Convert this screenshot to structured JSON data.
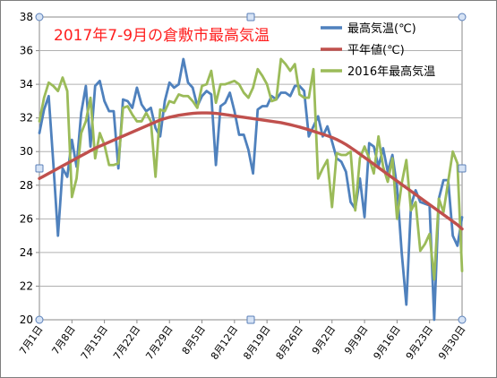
{
  "chart_data": {
    "type": "line",
    "title": "2017年7-9月の倉敷市最高気温",
    "xlabel": "",
    "ylabel": "",
    "ylim": [
      20,
      38
    ],
    "yticks": [
      20,
      22,
      24,
      26,
      28,
      30,
      32,
      34,
      36,
      38
    ],
    "xticks": [
      "7月1日",
      "7月8日",
      "7月15日",
      "7月22日",
      "7月29日",
      "8月5日",
      "8月12日",
      "8月19日",
      "8月26日",
      "9月2日",
      "9月9日",
      "9月16日",
      "9月23日",
      "9月30日"
    ],
    "grid": "horizontal",
    "legend": "top-right",
    "days": 92,
    "series": [
      {
        "name": "最高気温(℃)",
        "color": "#4f81bd",
        "values": [
          31.1,
          32.5,
          33.3,
          29.3,
          25.0,
          29.0,
          28.5,
          30.7,
          29.1,
          32.3,
          33.9,
          30.3,
          33.9,
          34.2,
          33.0,
          32.4,
          32.4,
          29.0,
          33.1,
          33.0,
          32.6,
          33.8,
          32.8,
          32.4,
          32.6,
          31.4,
          30.9,
          33.0,
          34.1,
          33.8,
          34.0,
          35.5,
          34.1,
          33.8,
          32.7,
          33.3,
          33.6,
          33.4,
          29.2,
          32.7,
          32.9,
          33.5,
          32.4,
          31.0,
          31.0,
          30.1,
          28.7,
          32.5,
          32.7,
          32.7,
          33.3,
          33.1,
          33.5,
          33.5,
          33.3,
          33.9,
          33.9,
          33.6,
          30.9,
          31.5,
          32.1,
          30.9,
          31.5,
          30.6,
          29.6,
          29.4,
          28.8,
          27.0,
          26.6,
          28.4,
          26.1,
          30.5,
          30.3,
          29.1,
          30.2,
          28.8,
          29.8,
          27.9,
          24.0,
          20.9,
          26.8,
          27.7,
          27.0,
          26.9,
          26.8,
          20.0,
          27.2,
          28.3,
          28.3,
          25.0,
          24.4,
          26.1
        ]
      },
      {
        "name": "平年値(℃)",
        "color": "#c0504d",
        "values": [
          28.4,
          28.55,
          28.7,
          28.85,
          29.0,
          29.15,
          29.3,
          29.45,
          29.6,
          29.75,
          29.9,
          30.05,
          30.2,
          30.32,
          30.44,
          30.56,
          30.68,
          30.8,
          30.92,
          31.04,
          31.16,
          31.28,
          31.4,
          31.52,
          31.64,
          31.76,
          31.88,
          31.96,
          32.04,
          32.1,
          32.16,
          32.2,
          32.24,
          32.27,
          32.29,
          32.3,
          32.3,
          32.29,
          32.27,
          32.24,
          32.2,
          32.16,
          32.12,
          32.08,
          32.04,
          32.0,
          31.96,
          31.92,
          31.88,
          31.84,
          31.8,
          31.76,
          31.72,
          31.66,
          31.6,
          31.53,
          31.46,
          31.38,
          31.3,
          31.21,
          31.12,
          31.03,
          30.94,
          30.84,
          30.72,
          30.58,
          30.42,
          30.24,
          30.05,
          29.85,
          29.65,
          29.45,
          29.25,
          29.05,
          28.85,
          28.65,
          28.45,
          28.25,
          28.05,
          27.85,
          27.65,
          27.45,
          27.25,
          27.05,
          26.85,
          26.65,
          26.45,
          26.25,
          26.05,
          25.85,
          25.65,
          25.4
        ]
      },
      {
        "name": "2016年最高気温",
        "color": "#9bbb59",
        "values": [
          31.8,
          33.2,
          34.1,
          33.9,
          33.6,
          34.4,
          33.6,
          27.3,
          28.4,
          31.1,
          31.8,
          33.2,
          29.6,
          31.1,
          30.4,
          29.2,
          29.2,
          29.3,
          32.6,
          32.7,
          32.2,
          31.8,
          31.8,
          32.3,
          31.8,
          28.5,
          32.5,
          32.4,
          33.0,
          32.9,
          33.4,
          33.3,
          33.3,
          33.0,
          32.6,
          33.9,
          34.0,
          34.8,
          32.9,
          34.0,
          34.0,
          34.1,
          34.2,
          34.0,
          33.5,
          33.2,
          33.8,
          34.9,
          34.5,
          34.0,
          33.0,
          33.1,
          35.5,
          35.2,
          34.8,
          35.2,
          33.4,
          33.2,
          33.2,
          34.9,
          28.4,
          29.0,
          29.5,
          26.7,
          29.9,
          29.8,
          29.8,
          30.0,
          26.5,
          29.6,
          30.3,
          29.6,
          28.7,
          30.9,
          29.1,
          28.2,
          29.6,
          26.0,
          28.1,
          29.5,
          26.5,
          27.0,
          24.1,
          24.5,
          25.1,
          22.4,
          27.2,
          26.4,
          28.2,
          30.0,
          29.3,
          22.9
        ]
      }
    ]
  }
}
